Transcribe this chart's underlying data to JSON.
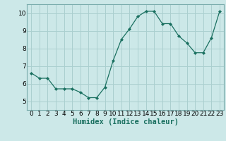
{
  "x": [
    0,
    1,
    2,
    3,
    4,
    5,
    6,
    7,
    8,
    9,
    10,
    11,
    12,
    13,
    14,
    15,
    16,
    17,
    18,
    19,
    20,
    21,
    22,
    23
  ],
  "y": [
    6.6,
    6.3,
    6.3,
    5.7,
    5.7,
    5.7,
    5.5,
    5.2,
    5.2,
    5.8,
    7.3,
    8.5,
    9.1,
    9.8,
    10.1,
    10.1,
    9.4,
    9.4,
    8.7,
    8.3,
    7.75,
    7.75,
    8.6,
    10.1
  ],
  "line_color": "#1a7060",
  "marker_color": "#1a7060",
  "bg_color": "#cce8e8",
  "grid_color": "#aacfcf",
  "xlabel": "Humidex (Indice chaleur)",
  "xlabel_fontsize": 7.5,
  "tick_fontsize": 6.5,
  "ylim": [
    4.5,
    10.5
  ],
  "xlim": [
    -0.5,
    23.5
  ],
  "yticks": [
    5,
    6,
    7,
    8,
    9,
    10
  ],
  "xticks": [
    0,
    1,
    2,
    3,
    4,
    5,
    6,
    7,
    8,
    9,
    10,
    11,
    12,
    13,
    14,
    15,
    16,
    17,
    18,
    19,
    20,
    21,
    22,
    23
  ]
}
